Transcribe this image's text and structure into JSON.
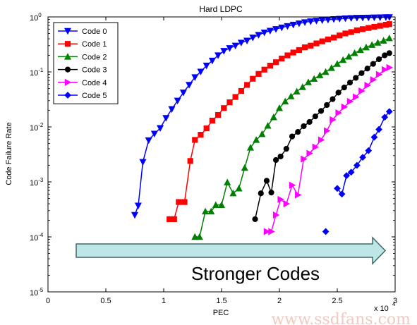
{
  "chart_data": {
    "type": "line",
    "title": "Hard LDPC",
    "xlabel": "PEC",
    "ylabel": "Code Failure Rate",
    "x_multiplier": "x 10",
    "x_multiplier_exp": "4",
    "xlim": [
      0,
      30000
    ],
    "ylim": [
      1e-05,
      1
    ],
    "yscale": "log",
    "x_ticks": [
      0,
      5000,
      10000,
      15000,
      20000,
      25000,
      30000
    ],
    "x_tick_labels": [
      "0",
      "0.5",
      "1",
      "1.5",
      "2",
      "2.5",
      "3"
    ],
    "y_ticks": [
      1e-05,
      0.0001,
      0.001,
      0.01,
      0.1,
      1
    ],
    "y_tick_base": "10",
    "y_tick_exps": [
      "-5",
      "-4",
      "-3",
      "-2",
      "-1",
      "0"
    ],
    "legend_position": "top-left",
    "series": [
      {
        "name": "Code 0",
        "color": "#0000ff",
        "marker": "triangle-down",
        "points": [
          [
            7500,
            0.00025
          ],
          [
            7800,
            0.00037
          ],
          [
            8200,
            0.0023
          ],
          [
            8700,
            0.0057
          ],
          [
            9200,
            0.0075
          ],
          [
            9700,
            0.0095
          ],
          [
            10200,
            0.0145
          ],
          [
            10700,
            0.021
          ],
          [
            11200,
            0.03
          ],
          [
            11700,
            0.042
          ],
          [
            12200,
            0.058
          ],
          [
            12700,
            0.08
          ],
          [
            13200,
            0.101
          ],
          [
            13700,
            0.13
          ],
          [
            14200,
            0.16
          ],
          [
            14700,
            0.2
          ],
          [
            15200,
            0.24
          ],
          [
            15700,
            0.27
          ],
          [
            16200,
            0.3
          ],
          [
            16700,
            0.34
          ],
          [
            17200,
            0.37
          ],
          [
            17700,
            0.42
          ],
          [
            18200,
            0.47
          ],
          [
            18700,
            0.52
          ],
          [
            19200,
            0.56
          ],
          [
            19700,
            0.6
          ],
          [
            20200,
            0.64
          ],
          [
            20700,
            0.68
          ],
          [
            21200,
            0.72
          ],
          [
            21700,
            0.76
          ],
          [
            22200,
            0.8
          ],
          [
            22700,
            0.83
          ],
          [
            23200,
            0.85
          ],
          [
            23700,
            0.87
          ],
          [
            24200,
            0.89
          ],
          [
            24700,
            0.91
          ],
          [
            25200,
            0.925
          ],
          [
            25700,
            0.94
          ],
          [
            26200,
            0.95
          ],
          [
            26700,
            0.96
          ],
          [
            27200,
            0.965
          ],
          [
            27700,
            0.97
          ],
          [
            28200,
            0.975
          ],
          [
            28700,
            0.98
          ],
          [
            29200,
            0.985
          ],
          [
            29500,
            0.985
          ]
        ]
      },
      {
        "name": "Code 1",
        "color": "#ff0000",
        "marker": "square",
        "points": [
          [
            10500,
            0.00021
          ],
          [
            10900,
            0.00021
          ],
          [
            11300,
            0.00043
          ],
          [
            11800,
            0.00043
          ],
          [
            12300,
            0.0024
          ],
          [
            12700,
            0.0058
          ],
          [
            13200,
            0.0072
          ],
          [
            13700,
            0.0094
          ],
          [
            14200,
            0.013
          ],
          [
            14700,
            0.0165
          ],
          [
            15200,
            0.022
          ],
          [
            15700,
            0.028
          ],
          [
            16200,
            0.035
          ],
          [
            16700,
            0.045
          ],
          [
            17200,
            0.058
          ],
          [
            17700,
            0.075
          ],
          [
            18200,
            0.092
          ],
          [
            18700,
            0.11
          ],
          [
            19200,
            0.13
          ],
          [
            19700,
            0.15
          ],
          [
            20200,
            0.175
          ],
          [
            20700,
            0.2
          ],
          [
            21200,
            0.225
          ],
          [
            21700,
            0.25
          ],
          [
            22200,
            0.28
          ],
          [
            22700,
            0.3
          ],
          [
            23200,
            0.33
          ],
          [
            23700,
            0.36
          ],
          [
            24200,
            0.39
          ],
          [
            24700,
            0.42
          ],
          [
            25200,
            0.46
          ],
          [
            25700,
            0.5
          ],
          [
            26200,
            0.53
          ],
          [
            26700,
            0.57
          ],
          [
            27200,
            0.6
          ],
          [
            27700,
            0.63
          ],
          [
            28200,
            0.66
          ],
          [
            28700,
            0.69
          ],
          [
            29200,
            0.72
          ],
          [
            29500,
            0.74
          ]
        ]
      },
      {
        "name": "Code 2",
        "color": "#008000",
        "marker": "triangle-up",
        "points": [
          [
            12700,
            0.0001
          ],
          [
            13100,
            0.0001
          ],
          [
            13600,
            0.00029
          ],
          [
            14100,
            0.00029
          ],
          [
            14500,
            0.00038
          ],
          [
            15000,
            0.00038
          ],
          [
            15500,
            0.00098
          ],
          [
            16000,
            0.00062
          ],
          [
            16500,
            0.00076
          ],
          [
            17000,
            0.0018
          ],
          [
            17500,
            0.0042
          ],
          [
            18000,
            0.0058
          ],
          [
            18500,
            0.0074
          ],
          [
            19000,
            0.0105
          ],
          [
            19500,
            0.015
          ],
          [
            20000,
            0.022
          ],
          [
            20500,
            0.029
          ],
          [
            21000,
            0.036
          ],
          [
            21500,
            0.044
          ],
          [
            22000,
            0.053
          ],
          [
            22500,
            0.065
          ],
          [
            23000,
            0.075
          ],
          [
            23500,
            0.087
          ],
          [
            24000,
            0.1
          ],
          [
            24500,
            0.118
          ],
          [
            25000,
            0.14
          ],
          [
            25500,
            0.165
          ],
          [
            26000,
            0.19
          ],
          [
            26500,
            0.22
          ],
          [
            27000,
            0.25
          ],
          [
            27500,
            0.28
          ],
          [
            28000,
            0.31
          ],
          [
            28500,
            0.34
          ],
          [
            29000,
            0.37
          ],
          [
            29500,
            0.41
          ]
        ]
      },
      {
        "name": "Code 3",
        "color": "#000000",
        "marker": "circle",
        "points": [
          [
            17900,
            0.00021
          ],
          [
            18400,
            0.00062
          ],
          [
            18900,
            0.00105
          ],
          [
            19300,
            0.00064
          ],
          [
            19700,
            0.0025
          ],
          [
            20100,
            0.0029
          ],
          [
            20600,
            0.004
          ],
          [
            21100,
            0.0067
          ],
          [
            21600,
            0.0081
          ],
          [
            22100,
            0.0103
          ],
          [
            22600,
            0.0123
          ],
          [
            23100,
            0.0155
          ],
          [
            23600,
            0.0195
          ],
          [
            24100,
            0.025
          ],
          [
            24600,
            0.032
          ],
          [
            25100,
            0.042
          ],
          [
            25600,
            0.052
          ],
          [
            26100,
            0.064
          ],
          [
            26600,
            0.078
          ],
          [
            27100,
            0.095
          ],
          [
            27600,
            0.115
          ],
          [
            28100,
            0.14
          ],
          [
            28600,
            0.17
          ],
          [
            29100,
            0.2
          ],
          [
            29500,
            0.22
          ]
        ]
      },
      {
        "name": "Code 4",
        "color": "#ff00ff",
        "marker": "triangle-right",
        "points": [
          [
            18900,
            0.000125
          ],
          [
            19300,
            0.000125
          ],
          [
            19700,
            0.00025
          ],
          [
            20100,
            0.00048
          ],
          [
            20600,
            0.0004
          ],
          [
            21100,
            0.00087
          ],
          [
            21600,
            0.00058
          ],
          [
            22100,
            0.0026
          ],
          [
            22600,
            0.0033
          ],
          [
            23100,
            0.0043
          ],
          [
            23600,
            0.0058
          ],
          [
            24100,
            0.0085
          ],
          [
            24600,
            0.0135
          ],
          [
            25100,
            0.018
          ],
          [
            25600,
            0.023
          ],
          [
            26100,
            0.029
          ],
          [
            26600,
            0.035
          ],
          [
            27100,
            0.045
          ],
          [
            27600,
            0.057
          ],
          [
            28100,
            0.072
          ],
          [
            28600,
            0.09
          ],
          [
            29100,
            0.11
          ],
          [
            29500,
            0.12
          ]
        ]
      },
      {
        "name": "Code 5",
        "color": "#0000ff",
        "marker": "diamond",
        "isolated_points": [
          [
            24000,
            0.000125
          ]
        ],
        "points": [
          [
            25000,
            0.00076
          ],
          [
            25400,
            0.0006
          ],
          [
            25800,
            0.0013
          ],
          [
            26200,
            0.0015
          ],
          [
            26700,
            0.002
          ],
          [
            27200,
            0.0028
          ],
          [
            27700,
            0.0037
          ],
          [
            28200,
            0.0065
          ],
          [
            28600,
            0.009
          ],
          [
            29100,
            0.015
          ],
          [
            29500,
            0.019
          ]
        ]
      }
    ],
    "annotation": {
      "text": "Stronger Codes",
      "arrow_fill": "#bfe6e6",
      "arrow_stroke": "#3a6a6a"
    }
  },
  "watermark": "www.ssdfans.com"
}
